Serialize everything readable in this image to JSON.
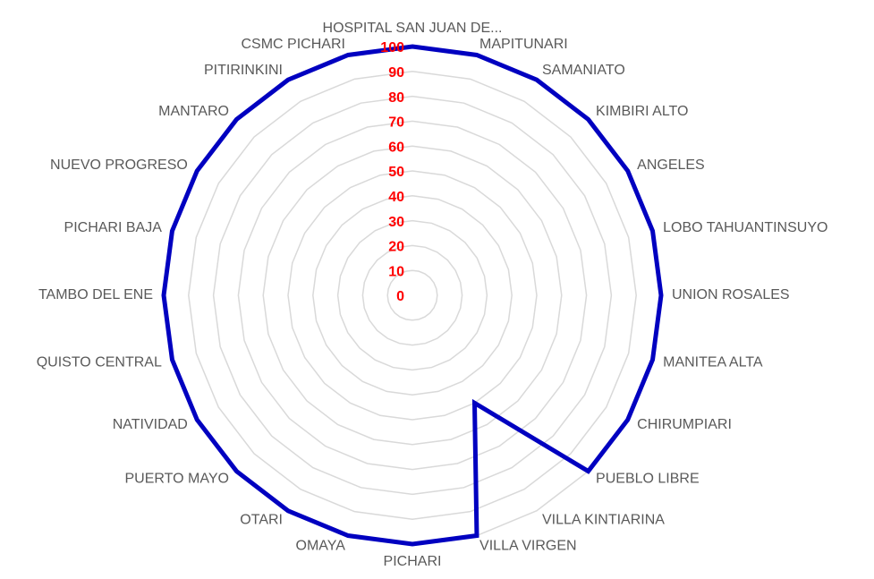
{
  "chart_data": {
    "type": "radar",
    "categories": [
      "HOSPITAL SAN JUAN DE...",
      "MAPITUNARI",
      "SAMANIATO",
      "KIMBIRI ALTO",
      "ANGELES",
      "LOBO TAHUANTINSUYO",
      "UNION ROSALES",
      "MANITEA ALTA",
      "CHIRUMPIARI",
      "PUEBLO LIBRE",
      "VILLA KINTIARINA",
      "VILLA VIRGEN",
      "PICHARI",
      "OMAYA",
      "OTARI",
      "PUERTO MAYO",
      "NATIVIDAD",
      "QUISTO CENTRAL",
      "TAMBO DEL ENE",
      "PICHARI BAJA",
      "NUEVO PROGRESO",
      "MANTARO",
      "PITIRINKINI",
      "CSMC PICHARI"
    ],
    "values": [
      100,
      100,
      100,
      100,
      100,
      100,
      100,
      100,
      100,
      100,
      50,
      100,
      100,
      100,
      100,
      100,
      100,
      100,
      100,
      100,
      100,
      100,
      100,
      100
    ],
    "color": "#0000c0",
    "rlim": [
      0,
      100
    ],
    "rticks": [
      0,
      10,
      20,
      30,
      40,
      50,
      60,
      70,
      80,
      90,
      100
    ],
    "grid": true
  }
}
